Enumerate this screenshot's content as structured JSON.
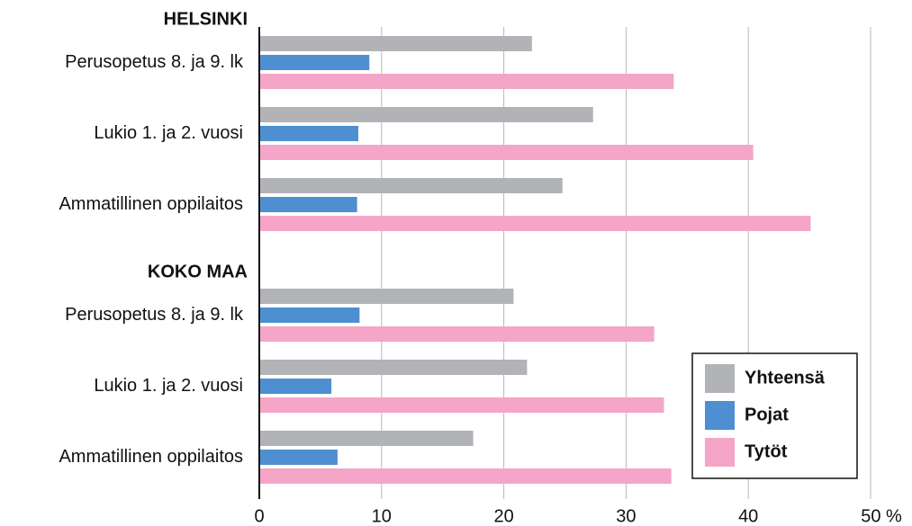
{
  "chart_data": {
    "type": "bar",
    "orientation": "horizontal",
    "group_labels": [
      "HELSINKI",
      "KOKO MAA"
    ],
    "categories": [
      "Perusopetus 8. ja 9. lk",
      "Lukio 1. ja 2. vuosi",
      "Ammatillinen oppilaitos",
      "Perusopetus 8. ja 9. lk",
      "Lukio 1. ja 2. vuosi",
      "Ammatillinen oppilaitos"
    ],
    "series": [
      {
        "name": "Yhteensä",
        "color": "#b1b3b6",
        "values": [
          22.3,
          27.3,
          24.8,
          20.8,
          21.9,
          17.5
        ]
      },
      {
        "name": "Pojat",
        "color": "#4d8fd1",
        "values": [
          9.0,
          8.1,
          8.0,
          8.2,
          5.9,
          6.4
        ]
      },
      {
        "name": "Tytöt",
        "color": "#f5a5c8",
        "values": [
          33.9,
          40.4,
          45.1,
          32.3,
          33.1,
          33.7
        ]
      }
    ],
    "xlim": [
      0,
      50
    ],
    "xticks": [
      0,
      10,
      20,
      30,
      40,
      {
        "value": 50,
        "label": "50 %"
      }
    ],
    "grid": true,
    "legend": "bottom right"
  }
}
